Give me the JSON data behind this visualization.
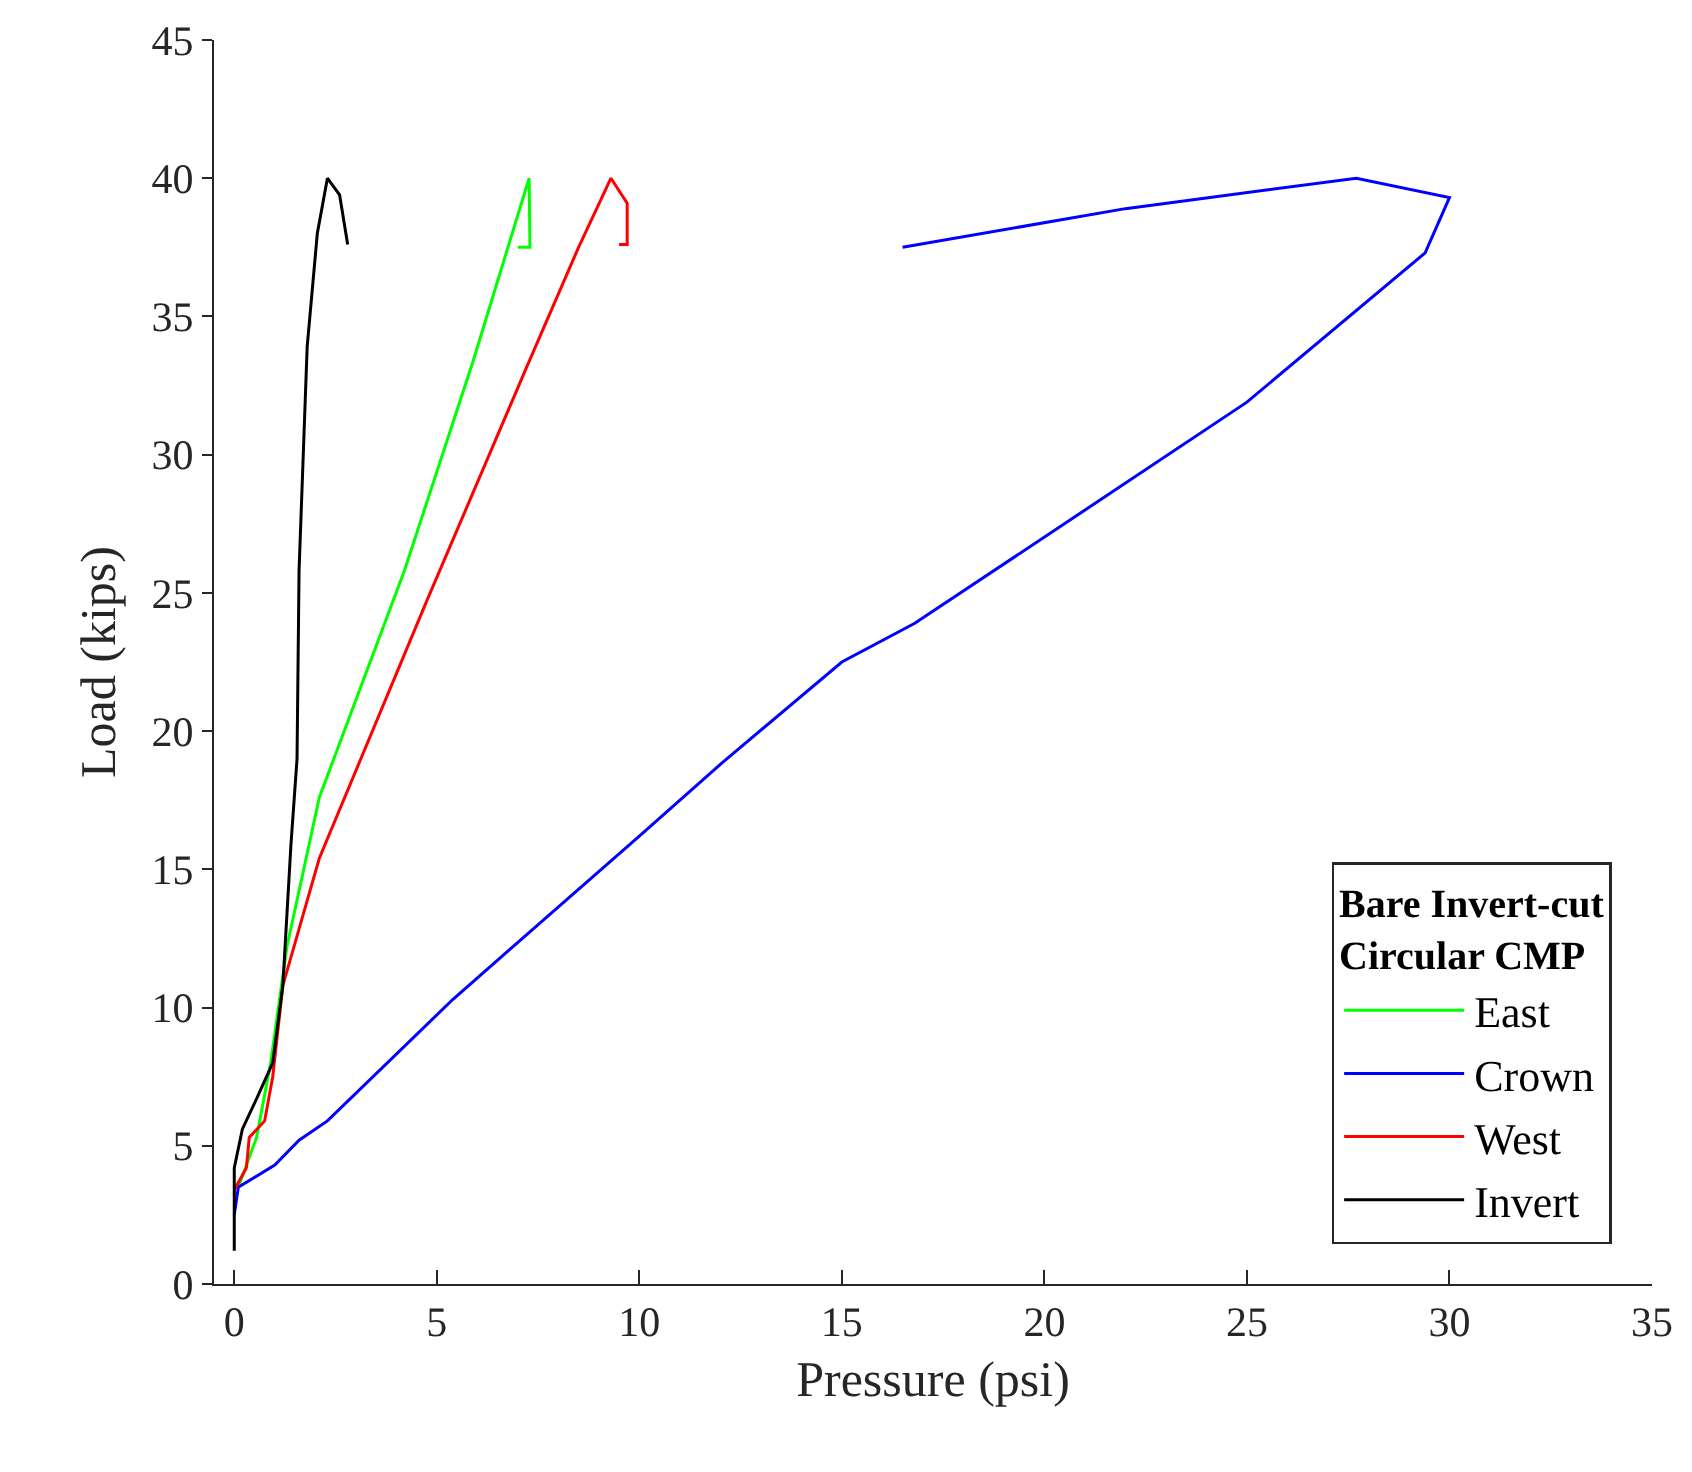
{
  "chart_data": {
    "type": "line",
    "xlabel": "Pressure (psi)",
    "ylabel": "Load (kips)",
    "legend_title": "Bare Invert-cut Circular CMP",
    "xlim": [
      -0.5,
      35
    ],
    "xticks": [
      0,
      5,
      10,
      15,
      20,
      25,
      30,
      35
    ],
    "ylim": [
      0,
      45
    ],
    "yticks": [
      0,
      5,
      10,
      15,
      20,
      25,
      30,
      35,
      40,
      45
    ],
    "grid": false,
    "legend": "bottom right",
    "marker": "none",
    "line_style": "solid",
    "series": [
      {
        "name": "East",
        "color": "#00ff00",
        "x": [
          0.1,
          0.55,
          0.9,
          1.3,
          2.1,
          4.2,
          5.9,
          7.28,
          7.3,
          7.0
        ],
        "values": [
          3.5,
          5.3,
          8.0,
          12.2,
          17.6,
          25.8,
          33.4,
          40,
          37.5,
          37.5
        ]
      },
      {
        "name": "Crown",
        "color": "#0000ff",
        "x": [
          0,
          0.1,
          1.0,
          1.6,
          2.3,
          5.4,
          10,
          12,
          15,
          16.8,
          20.8,
          25,
          29.4,
          30,
          27.7,
          22,
          16.5
        ],
        "values": [
          2.5,
          3.5,
          4.3,
          5.2,
          5.9,
          10.3,
          16.2,
          18.8,
          22.5,
          23.9,
          27.8,
          31.9,
          37.3,
          39.3,
          40,
          38.9,
          37.5
        ]
      },
      {
        "name": "West",
        "color": "#ff0000",
        "x": [
          0,
          0.3,
          0.37,
          0.75,
          0.95,
          1.2,
          2.1,
          4.75,
          7.2,
          8.5,
          9.3,
          9.7,
          9.7,
          9.5
        ],
        "values": [
          3.4,
          4.2,
          5.3,
          5.9,
          7.5,
          10.8,
          15.4,
          24.7,
          33.1,
          37.5,
          40,
          39.1,
          37.6,
          37.6
        ]
      },
      {
        "name": "Invert",
        "color": "#000000",
        "x": [
          0,
          0,
          0.2,
          0.55,
          0.95,
          1.2,
          1.4,
          1.55,
          1.6,
          1.8,
          2.05,
          2.3,
          2.6,
          2.8
        ],
        "values": [
          1.2,
          4.2,
          5.6,
          6.7,
          8.0,
          10.8,
          15.9,
          19.0,
          25.8,
          33.9,
          38.0,
          40,
          39.4,
          37.6
        ]
      }
    ]
  }
}
